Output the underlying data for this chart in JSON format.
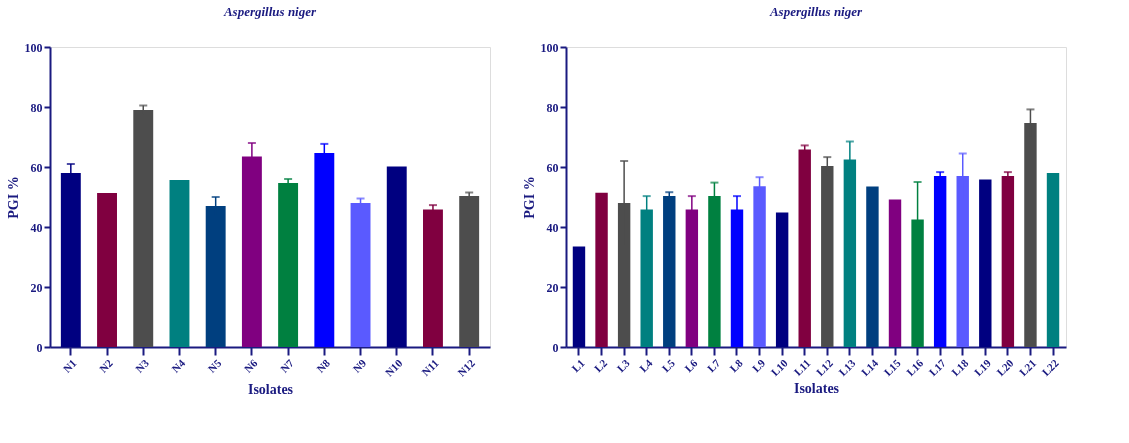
{
  "chart_data": [
    {
      "type": "bar",
      "title": "Aspergillus niger",
      "xlabel": "Isolates",
      "ylabel": "PGI %",
      "categories": [
        "N1",
        "N2",
        "N3",
        "N4",
        "N5",
        "N6",
        "N7",
        "N8",
        "N9",
        "N10",
        "N11",
        "N12"
      ],
      "values": [
        58,
        51.3,
        79,
        55.7,
        47,
        63.5,
        54.7,
        64.7,
        48,
        60.2,
        45.8,
        50.3
      ],
      "errors": [
        3,
        null,
        1.5,
        null,
        3,
        4.5,
        1.3,
        3,
        1.5,
        null,
        1.5,
        1.2
      ],
      "colors": [
        "#000080",
        "#800040",
        "#4d4d4d",
        "#008080",
        "#003f7f",
        "#800080",
        "#008040",
        "#0000ff",
        "#5a5aff",
        "#000080",
        "#800040",
        "#4d4d4d"
      ],
      "ylim": [
        0,
        100
      ],
      "yticks": [
        0,
        20,
        40,
        60,
        80,
        100
      ],
      "grid": false
    },
    {
      "type": "bar",
      "title": "Aspergillus niger",
      "xlabel": "Isolates",
      "ylabel": "PGI %",
      "categories": [
        "L1",
        "L2",
        "L3",
        "L4",
        "L5",
        "L6",
        "L7",
        "L8",
        "L9",
        "L10",
        "L11",
        "L12",
        "L13",
        "L14",
        "L15",
        "L16",
        "L17",
        "L18",
        "L19",
        "L20",
        "L21",
        "L22"
      ],
      "values": [
        33.5,
        51.4,
        48,
        45.8,
        50.3,
        45.8,
        50.3,
        45.8,
        53.6,
        44.8,
        65.8,
        60.3,
        62.5,
        53.5,
        49.2,
        42.5,
        57,
        57,
        55.8,
        57,
        74.7,
        58
      ],
      "errors": [
        null,
        null,
        14,
        4.5,
        1.3,
        4.5,
        4.5,
        4.5,
        3,
        null,
        1.4,
        3,
        6,
        null,
        null,
        12.5,
        1.3,
        7.5,
        null,
        1.3,
        4.5,
        null
      ],
      "colors": [
        "#000080",
        "#800040",
        "#4d4d4d",
        "#008080",
        "#003f7f",
        "#800080",
        "#008040",
        "#0000ff",
        "#5a5aff",
        "#000080",
        "#800040",
        "#4d4d4d",
        "#008080",
        "#003f7f",
        "#800080",
        "#008040",
        "#0000ff",
        "#5a5aff",
        "#000080",
        "#800040",
        "#4d4d4d",
        "#008080"
      ],
      "ylim": [
        0,
        100
      ],
      "yticks": [
        0,
        20,
        40,
        60,
        80,
        100
      ],
      "grid": false
    }
  ]
}
